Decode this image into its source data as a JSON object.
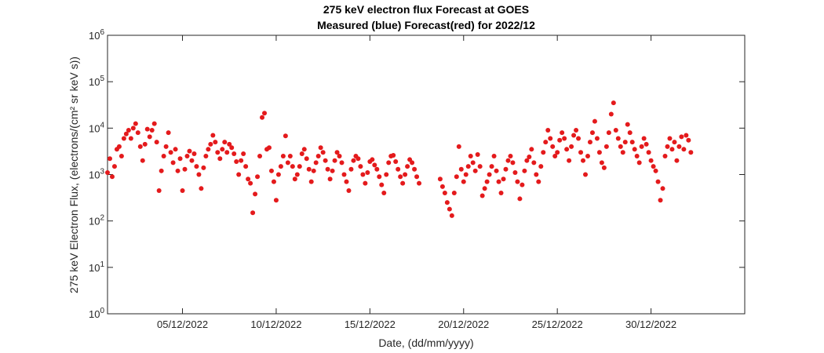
{
  "chart_data": {
    "type": "scatter",
    "title": "275 keV electron flux Forecast at GOES",
    "subtitle": "Measured (blue) Forecast(red) for 2022/12",
    "xlabel": "Date, (dd/mm/yyyy)",
    "ylabel": "275 keV Electron Flux, (electrons/(cm² sr keV s))",
    "y_scale": "log",
    "ylim": [
      1,
      1000000
    ],
    "xlim": [
      "2022-12-01",
      "2023-01-04"
    ],
    "x_ticks": [
      "05/12/2022",
      "10/12/2022",
      "15/12/2022",
      "20/12/2022",
      "25/12/2022",
      "30/12/2022"
    ],
    "y_ticks": [
      1,
      10,
      100,
      1000,
      10000,
      100000,
      1000000
    ],
    "y_tick_labels": [
      {
        "base": "10",
        "exp": "0"
      },
      {
        "base": "10",
        "exp": "1"
      },
      {
        "base": "10",
        "exp": "2"
      },
      {
        "base": "10",
        "exp": "3"
      },
      {
        "base": "10",
        "exp": "4"
      },
      {
        "base": "10",
        "exp": "5"
      },
      {
        "base": "10",
        "exp": "6"
      }
    ],
    "grid": false,
    "series": [
      {
        "color": "#e41a1c",
        "points": [
          [
            "2022-12-01 00:00",
            1100
          ],
          [
            "2022-12-01 03:00",
            2200
          ],
          [
            "2022-12-01 06:00",
            900
          ],
          [
            "2022-12-01 09:00",
            1500
          ],
          [
            "2022-12-01 12:00",
            3500
          ],
          [
            "2022-12-01 15:00",
            4000
          ],
          [
            "2022-12-01 18:00",
            2500
          ],
          [
            "2022-12-01 21:00",
            6000
          ],
          [
            "2022-12-02 00:00",
            7500
          ],
          [
            "2022-12-02 03:00",
            9000
          ],
          [
            "2022-12-02 06:00",
            6000
          ],
          [
            "2022-12-02 09:00",
            10000
          ],
          [
            "2022-12-02 12:00",
            12500
          ],
          [
            "2022-12-02 15:00",
            8000
          ],
          [
            "2022-12-02 18:00",
            4000
          ],
          [
            "2022-12-02 21:00",
            2000
          ],
          [
            "2022-12-03 00:00",
            4500
          ],
          [
            "2022-12-03 03:00",
            9500
          ],
          [
            "2022-12-03 06:00",
            6500
          ],
          [
            "2022-12-03 09:00",
            9000
          ],
          [
            "2022-12-03 12:00",
            12500
          ],
          [
            "2022-12-03 15:00",
            5000
          ],
          [
            "2022-12-03 18:00",
            450
          ],
          [
            "2022-12-03 21:00",
            1200
          ],
          [
            "2022-12-04 00:00",
            2500
          ],
          [
            "2022-12-04 03:00",
            4000
          ],
          [
            "2022-12-04 06:00",
            8000
          ],
          [
            "2022-12-04 09:00",
            3000
          ],
          [
            "2022-12-04 12:00",
            1800
          ],
          [
            "2022-12-04 15:00",
            3500
          ],
          [
            "2022-12-04 18:00",
            1200
          ],
          [
            "2022-12-04 21:00",
            2200
          ],
          [
            "2022-12-05 00:00",
            450
          ],
          [
            "2022-12-05 03:00",
            1300
          ],
          [
            "2022-12-05 06:00",
            2500
          ],
          [
            "2022-12-05 09:00",
            3200
          ],
          [
            "2022-12-05 12:00",
            2000
          ],
          [
            "2022-12-05 15:00",
            2800
          ],
          [
            "2022-12-05 18:00",
            1500
          ],
          [
            "2022-12-05 21:00",
            1000
          ],
          [
            "2022-12-06 00:00",
            500
          ],
          [
            "2022-12-06 03:00",
            1400
          ],
          [
            "2022-12-06 06:00",
            2500
          ],
          [
            "2022-12-06 09:00",
            3500
          ],
          [
            "2022-12-06 12:00",
            4500
          ],
          [
            "2022-12-06 15:00",
            7000
          ],
          [
            "2022-12-06 18:00",
            5000
          ],
          [
            "2022-12-06 21:00",
            3000
          ],
          [
            "2022-12-07 00:00",
            2200
          ],
          [
            "2022-12-07 03:00",
            3500
          ],
          [
            "2022-12-07 06:00",
            5000
          ],
          [
            "2022-12-07 09:00",
            3000
          ],
          [
            "2022-12-07 12:00",
            4500
          ],
          [
            "2022-12-07 15:00",
            3800
          ],
          [
            "2022-12-07 18:00",
            2800
          ],
          [
            "2022-12-07 21:00",
            1900
          ],
          [
            "2022-12-08 00:00",
            1000
          ],
          [
            "2022-12-08 03:00",
            2000
          ],
          [
            "2022-12-08 06:00",
            2800
          ],
          [
            "2022-12-08 09:00",
            1500
          ],
          [
            "2022-12-08 12:00",
            800
          ],
          [
            "2022-12-08 15:00",
            650
          ],
          [
            "2022-12-08 18:00",
            150
          ],
          [
            "2022-12-08 21:00",
            380
          ],
          [
            "2022-12-09 00:00",
            900
          ],
          [
            "2022-12-09 03:00",
            2500
          ],
          [
            "2022-12-09 06:00",
            17000
          ],
          [
            "2022-12-09 09:00",
            21000
          ],
          [
            "2022-12-09 12:00",
            3500
          ],
          [
            "2022-12-09 15:00",
            3800
          ],
          [
            "2022-12-09 18:00",
            1200
          ],
          [
            "2022-12-09 21:00",
            700
          ],
          [
            "2022-12-10 00:00",
            280
          ],
          [
            "2022-12-10 03:00",
            1000
          ],
          [
            "2022-12-10 06:00",
            1500
          ],
          [
            "2022-12-10 09:00",
            2500
          ],
          [
            "2022-12-10 12:00",
            6800
          ],
          [
            "2022-12-10 15:00",
            1800
          ],
          [
            "2022-12-10 18:00",
            2500
          ],
          [
            "2022-12-10 21:00",
            1500
          ],
          [
            "2022-12-11 00:00",
            800
          ],
          [
            "2022-12-11 03:00",
            1000
          ],
          [
            "2022-12-11 06:00",
            1500
          ],
          [
            "2022-12-11 09:00",
            2800
          ],
          [
            "2022-12-11 12:00",
            3500
          ],
          [
            "2022-12-11 15:00",
            2200
          ],
          [
            "2022-12-11 18:00",
            1300
          ],
          [
            "2022-12-11 21:00",
            700
          ],
          [
            "2022-12-12 00:00",
            1200
          ],
          [
            "2022-12-12 03:00",
            1800
          ],
          [
            "2022-12-12 06:00",
            2500
          ],
          [
            "2022-12-12 09:00",
            3800
          ],
          [
            "2022-12-12 12:00",
            3000
          ],
          [
            "2022-12-12 15:00",
            2000
          ],
          [
            "2022-12-12 18:00",
            1300
          ],
          [
            "2022-12-12 21:00",
            800
          ],
          [
            "2022-12-13 00:00",
            1200
          ],
          [
            "2022-12-13 03:00",
            2000
          ],
          [
            "2022-12-13 06:00",
            3000
          ],
          [
            "2022-12-13 09:00",
            2500
          ],
          [
            "2022-12-13 12:00",
            1800
          ],
          [
            "2022-12-13 15:00",
            1000
          ],
          [
            "2022-12-13 18:00",
            700
          ],
          [
            "2022-12-13 21:00",
            450
          ],
          [
            "2022-12-14 00:00",
            1300
          ],
          [
            "2022-12-14 03:00",
            2000
          ],
          [
            "2022-12-14 06:00",
            2500
          ],
          [
            "2022-12-14 09:00",
            2200
          ],
          [
            "2022-12-14 12:00",
            1500
          ],
          [
            "2022-12-14 15:00",
            1000
          ],
          [
            "2022-12-14 18:00",
            650
          ],
          [
            "2022-12-14 21:00",
            1100
          ],
          [
            "2022-12-15 00:00",
            1900
          ],
          [
            "2022-12-15 03:00",
            2100
          ],
          [
            "2022-12-15 06:00",
            1600
          ],
          [
            "2022-12-15 09:00",
            1300
          ],
          [
            "2022-12-15 12:00",
            900
          ],
          [
            "2022-12-15 15:00",
            600
          ],
          [
            "2022-12-15 18:00",
            400
          ],
          [
            "2022-12-15 21:00",
            1000
          ],
          [
            "2022-12-16 00:00",
            1800
          ],
          [
            "2022-12-16 03:00",
            2500
          ],
          [
            "2022-12-16 06:00",
            2600
          ],
          [
            "2022-12-16 09:00",
            1900
          ],
          [
            "2022-12-16 12:00",
            1300
          ],
          [
            "2022-12-16 15:00",
            900
          ],
          [
            "2022-12-16 18:00",
            650
          ],
          [
            "2022-12-16 21:00",
            1000
          ],
          [
            "2022-12-17 00:00",
            1500
          ],
          [
            "2022-12-17 03:00",
            2100
          ],
          [
            "2022-12-17 06:00",
            1800
          ],
          [
            "2022-12-17 09:00",
            1300
          ],
          [
            "2022-12-17 12:00",
            900
          ],
          [
            "2022-12-17 15:00",
            650
          ],
          [
            "2022-12-18 18:00",
            800
          ],
          [
            "2022-12-18 21:00",
            550
          ],
          [
            "2022-12-19 00:00",
            400
          ],
          [
            "2022-12-19 03:00",
            250
          ],
          [
            "2022-12-19 06:00",
            180
          ],
          [
            "2022-12-19 09:00",
            130
          ],
          [
            "2022-12-19 12:00",
            400
          ],
          [
            "2022-12-19 15:00",
            900
          ],
          [
            "2022-12-19 18:00",
            4000
          ],
          [
            "2022-12-19 21:00",
            1300
          ],
          [
            "2022-12-20 00:00",
            700
          ],
          [
            "2022-12-20 03:00",
            1000
          ],
          [
            "2022-12-20 06:00",
            1500
          ],
          [
            "2022-12-20 09:00",
            2500
          ],
          [
            "2022-12-20 12:00",
            1800
          ],
          [
            "2022-12-20 15:00",
            1200
          ],
          [
            "2022-12-20 18:00",
            2700
          ],
          [
            "2022-12-20 21:00",
            1500
          ],
          [
            "2022-12-21 00:00",
            350
          ],
          [
            "2022-12-21 03:00",
            500
          ],
          [
            "2022-12-21 06:00",
            700
          ],
          [
            "2022-12-21 09:00",
            1000
          ],
          [
            "2022-12-21 12:00",
            1500
          ],
          [
            "2022-12-21 15:00",
            2500
          ],
          [
            "2022-12-21 18:00",
            1200
          ],
          [
            "2022-12-21 21:00",
            700
          ],
          [
            "2022-12-22 00:00",
            400
          ],
          [
            "2022-12-22 03:00",
            800
          ],
          [
            "2022-12-22 06:00",
            1300
          ],
          [
            "2022-12-22 09:00",
            2000
          ],
          [
            "2022-12-22 12:00",
            2500
          ],
          [
            "2022-12-22 15:00",
            1800
          ],
          [
            "2022-12-22 18:00",
            1100
          ],
          [
            "2022-12-22 21:00",
            700
          ],
          [
            "2022-12-23 00:00",
            300
          ],
          [
            "2022-12-23 03:00",
            600
          ],
          [
            "2022-12-23 06:00",
            1200
          ],
          [
            "2022-12-23 09:00",
            2000
          ],
          [
            "2022-12-23 12:00",
            2400
          ],
          [
            "2022-12-23 15:00",
            3500
          ],
          [
            "2022-12-23 18:00",
            1800
          ],
          [
            "2022-12-23 21:00",
            1000
          ],
          [
            "2022-12-24 00:00",
            700
          ],
          [
            "2022-12-24 03:00",
            1500
          ],
          [
            "2022-12-24 06:00",
            3000
          ],
          [
            "2022-12-24 09:00",
            5000
          ],
          [
            "2022-12-24 12:00",
            9000
          ],
          [
            "2022-12-24 15:00",
            6000
          ],
          [
            "2022-12-24 18:00",
            4000
          ],
          [
            "2022-12-24 21:00",
            2500
          ],
          [
            "2022-12-25 00:00",
            3000
          ],
          [
            "2022-12-25 03:00",
            5500
          ],
          [
            "2022-12-25 06:00",
            8000
          ],
          [
            "2022-12-25 09:00",
            6000
          ],
          [
            "2022-12-25 12:00",
            3500
          ],
          [
            "2022-12-25 15:00",
            2000
          ],
          [
            "2022-12-25 18:00",
            4000
          ],
          [
            "2022-12-25 21:00",
            7000
          ],
          [
            "2022-12-26 00:00",
            9000
          ],
          [
            "2022-12-26 03:00",
            6000
          ],
          [
            "2022-12-26 06:00",
            3000
          ],
          [
            "2022-12-26 09:00",
            2000
          ],
          [
            "2022-12-26 12:00",
            1000
          ],
          [
            "2022-12-26 15:00",
            2500
          ],
          [
            "2022-12-26 18:00",
            5000
          ],
          [
            "2022-12-26 21:00",
            8000
          ],
          [
            "2022-12-27 00:00",
            14000
          ],
          [
            "2022-12-27 03:00",
            6000
          ],
          [
            "2022-12-27 06:00",
            3000
          ],
          [
            "2022-12-27 09:00",
            1800
          ],
          [
            "2022-12-27 12:00",
            1400
          ],
          [
            "2022-12-27 15:00",
            4000
          ],
          [
            "2022-12-27 18:00",
            8000
          ],
          [
            "2022-12-27 21:00",
            20000
          ],
          [
            "2022-12-28 00:00",
            35000
          ],
          [
            "2022-12-28 03:00",
            9000
          ],
          [
            "2022-12-28 06:00",
            6000
          ],
          [
            "2022-12-28 09:00",
            4000
          ],
          [
            "2022-12-28 12:00",
            3000
          ],
          [
            "2022-12-28 15:00",
            5000
          ],
          [
            "2022-12-28 18:00",
            12000
          ],
          [
            "2022-12-28 21:00",
            8000
          ],
          [
            "2022-12-29 00:00",
            5000
          ],
          [
            "2022-12-29 03:00",
            3500
          ],
          [
            "2022-12-29 06:00",
            2500
          ],
          [
            "2022-12-29 09:00",
            1800
          ],
          [
            "2022-12-29 12:00",
            4000
          ],
          [
            "2022-12-29 15:00",
            6000
          ],
          [
            "2022-12-29 18:00",
            4500
          ],
          [
            "2022-12-29 21:00",
            3000
          ],
          [
            "2022-12-30 00:00",
            2000
          ],
          [
            "2022-12-30 03:00",
            1500
          ],
          [
            "2022-12-30 06:00",
            1200
          ],
          [
            "2022-12-30 09:00",
            700
          ],
          [
            "2022-12-30 12:00",
            280
          ],
          [
            "2022-12-30 15:00",
            500
          ],
          [
            "2022-12-30 18:00",
            2500
          ],
          [
            "2022-12-30 21:00",
            4000
          ],
          [
            "2022-12-31 00:00",
            6000
          ],
          [
            "2022-12-31 03:00",
            3500
          ],
          [
            "2022-12-31 06:00",
            5000
          ],
          [
            "2022-12-31 09:00",
            2000
          ],
          [
            "2022-12-31 12:00",
            4000
          ],
          [
            "2022-12-31 15:00",
            6500
          ],
          [
            "2022-12-31 18:00",
            3500
          ],
          [
            "2022-12-31 21:00",
            7000
          ],
          [
            "2023-01-01 00:00",
            5500
          ],
          [
            "2023-01-01 03:00",
            3000
          ]
        ]
      }
    ]
  }
}
